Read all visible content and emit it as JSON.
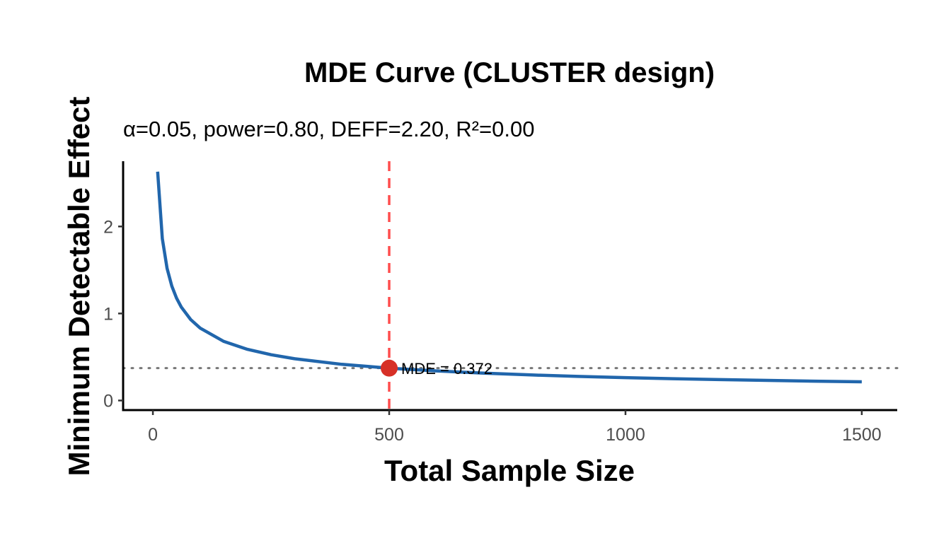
{
  "chart_data": {
    "type": "line",
    "title": "MDE Curve (CLUSTER design)",
    "subtitle": "α=0.05, power=0.80, DEFF=2.20, R²=0.00",
    "xlabel": "Total Sample Size",
    "ylabel": "Minimum Detectable Effect",
    "xlim": [
      -63,
      1575
    ],
    "ylim": [
      -0.11,
      2.75
    ],
    "xticks": [
      0,
      500,
      1000,
      1500
    ],
    "xtick_labels": [
      "0",
      "500",
      "1000",
      "1500"
    ],
    "yticks": [
      0,
      1,
      2
    ],
    "ytick_labels": [
      "0",
      "1",
      "2"
    ],
    "grid": false,
    "series": [
      {
        "name": "MDE",
        "color": "#2166ac",
        "x": [
          10,
          20,
          30,
          40,
          50,
          60,
          80,
          100,
          150,
          200,
          250,
          300,
          400,
          500,
          600,
          700,
          800,
          900,
          1000,
          1100,
          1200,
          1300,
          1400,
          1500
        ],
        "y": [
          2.63,
          1.86,
          1.519,
          1.315,
          1.176,
          1.074,
          0.93,
          0.832,
          0.679,
          0.588,
          0.526,
          0.48,
          0.416,
          0.372,
          0.34,
          0.314,
          0.294,
          0.277,
          0.263,
          0.251,
          0.24,
          0.231,
          0.222,
          0.215
        ]
      }
    ],
    "reference_lines": {
      "vertical": {
        "x": 500,
        "color": "#ff4d4d",
        "style": "dashed"
      },
      "horizontal": {
        "y": 0.372,
        "color": "#777777",
        "style": "dotted"
      }
    },
    "highlight_point": {
      "x": 500,
      "y": 0.372,
      "color": "#d73027"
    },
    "annotation": "MDE = 0.372"
  }
}
